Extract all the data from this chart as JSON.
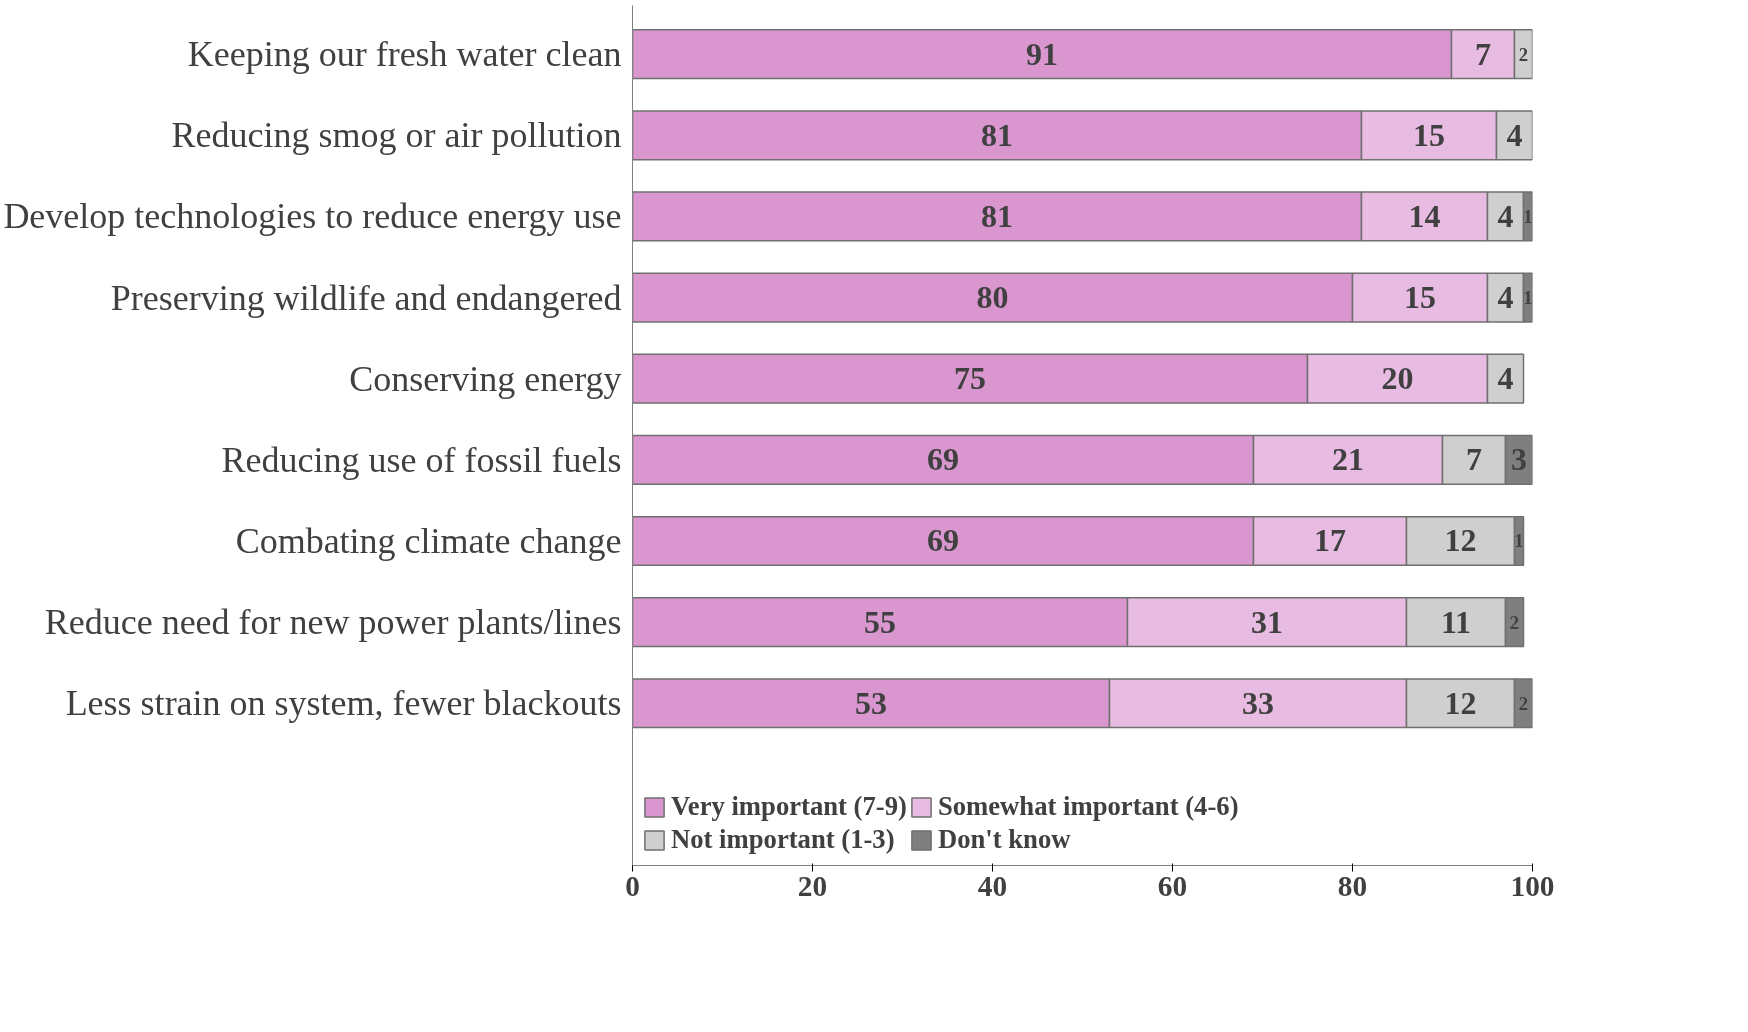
{
  "chart_data": {
    "type": "bar",
    "orientation": "horizontal",
    "stacked": true,
    "categories": [
      "Keeping our fresh water clean",
      "Reducing smog or air pollution",
      "Develop technologies to reduce energy use",
      "Preserving wildlife and endangered",
      "Conserving energy",
      "Reducing use of fossil fuels",
      "Combating climate change",
      "Reduce need for new power plants/lines",
      "Less strain on system, fewer blackouts"
    ],
    "series": [
      {
        "name": "Very important (7-9)",
        "color": "#d996cf",
        "values": [
          91,
          81,
          81,
          80,
          75,
          69,
          69,
          55,
          53
        ]
      },
      {
        "name": "Somewhat important (4-6)",
        "color": "#e8bce2",
        "values": [
          7,
          15,
          14,
          15,
          20,
          21,
          17,
          31,
          33
        ]
      },
      {
        "name": "Not important (1-3)",
        "color": "#cfcfcf",
        "values": [
          2,
          4,
          4,
          4,
          4,
          7,
          12,
          11,
          12
        ]
      },
      {
        "name": "Don't know",
        "color": "#7f7f7f",
        "values": [
          null,
          null,
          1,
          1,
          null,
          3,
          1,
          2,
          2
        ]
      }
    ],
    "xlim": [
      0,
      100
    ],
    "xticks": [
      0,
      20,
      40,
      60,
      80,
      100
    ],
    "data_labels": true,
    "grid": false,
    "legend": "bottom"
  }
}
